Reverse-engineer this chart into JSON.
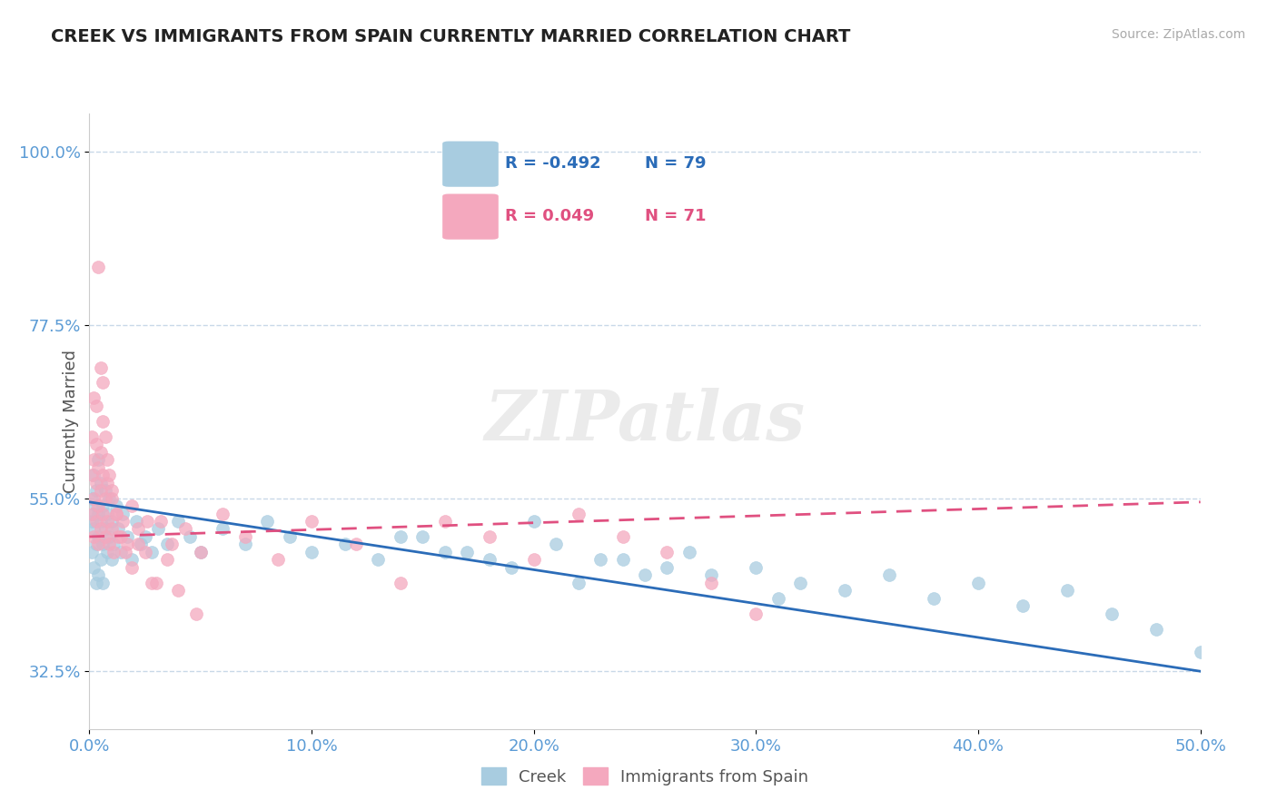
{
  "title": "CREEK VS IMMIGRANTS FROM SPAIN CURRENTLY MARRIED CORRELATION CHART",
  "source": "Source: ZipAtlas.com",
  "ylabel": "Currently Married",
  "xmin": 0.0,
  "xmax": 0.5,
  "ymin": 0.25,
  "ymax": 1.05,
  "yticks": [
    0.325,
    0.55,
    0.775,
    1.0
  ],
  "ytick_labels": [
    "32.5%",
    "55.0%",
    "77.5%",
    "100.0%"
  ],
  "xticks": [
    0.0,
    0.1,
    0.2,
    0.3,
    0.4,
    0.5
  ],
  "xtick_labels": [
    "0.0%",
    "10.0%",
    "20.0%",
    "30.0%",
    "40.0%",
    "50.0%"
  ],
  "creek_color": "#a8cce0",
  "spain_color": "#f4a8be",
  "creek_line_color": "#2b6cb8",
  "spain_line_color": "#e05080",
  "legend_creek_R": "-0.492",
  "legend_creek_N": "79",
  "legend_spain_R": "0.049",
  "legend_spain_N": "71",
  "creek_legend_label": "Creek",
  "spain_legend_label": "Immigrants from Spain",
  "watermark": "ZIPatlas",
  "title_color": "#222222",
  "axis_label_color": "#555555",
  "tick_label_color": "#5b9bd5",
  "grid_color": "#c8d8e8",
  "background_color": "#ffffff",
  "creek_x": [
    0.001,
    0.001,
    0.001,
    0.002,
    0.002,
    0.002,
    0.002,
    0.003,
    0.003,
    0.003,
    0.003,
    0.004,
    0.004,
    0.004,
    0.004,
    0.005,
    0.005,
    0.005,
    0.006,
    0.006,
    0.006,
    0.007,
    0.007,
    0.008,
    0.008,
    0.009,
    0.009,
    0.01,
    0.01,
    0.011,
    0.012,
    0.013,
    0.014,
    0.015,
    0.017,
    0.019,
    0.021,
    0.023,
    0.025,
    0.028,
    0.031,
    0.035,
    0.04,
    0.045,
    0.05,
    0.06,
    0.07,
    0.08,
    0.09,
    0.1,
    0.115,
    0.13,
    0.15,
    0.17,
    0.19,
    0.21,
    0.23,
    0.25,
    0.27,
    0.3,
    0.32,
    0.34,
    0.36,
    0.38,
    0.4,
    0.42,
    0.44,
    0.46,
    0.48,
    0.5,
    0.14,
    0.16,
    0.18,
    0.2,
    0.22,
    0.24,
    0.26,
    0.28,
    0.31
  ],
  "creek_y": [
    0.52,
    0.48,
    0.55,
    0.51,
    0.46,
    0.53,
    0.58,
    0.49,
    0.54,
    0.44,
    0.56,
    0.5,
    0.45,
    0.53,
    0.6,
    0.47,
    0.52,
    0.57,
    0.49,
    0.54,
    0.44,
    0.51,
    0.56,
    0.48,
    0.53,
    0.5,
    0.55,
    0.47,
    0.52,
    0.49,
    0.54,
    0.51,
    0.48,
    0.53,
    0.5,
    0.47,
    0.52,
    0.49,
    0.5,
    0.48,
    0.51,
    0.49,
    0.52,
    0.5,
    0.48,
    0.51,
    0.49,
    0.52,
    0.5,
    0.48,
    0.49,
    0.47,
    0.5,
    0.48,
    0.46,
    0.49,
    0.47,
    0.45,
    0.48,
    0.46,
    0.44,
    0.43,
    0.45,
    0.42,
    0.44,
    0.41,
    0.43,
    0.4,
    0.38,
    0.35,
    0.5,
    0.48,
    0.47,
    0.52,
    0.44,
    0.47,
    0.46,
    0.45,
    0.42
  ],
  "spain_x": [
    0.001,
    0.001,
    0.001,
    0.002,
    0.002,
    0.002,
    0.002,
    0.003,
    0.003,
    0.003,
    0.003,
    0.004,
    0.004,
    0.004,
    0.005,
    0.005,
    0.005,
    0.006,
    0.006,
    0.007,
    0.007,
    0.008,
    0.008,
    0.009,
    0.01,
    0.01,
    0.011,
    0.012,
    0.013,
    0.015,
    0.017,
    0.019,
    0.022,
    0.025,
    0.028,
    0.032,
    0.037,
    0.043,
    0.05,
    0.06,
    0.07,
    0.085,
    0.1,
    0.12,
    0.14,
    0.16,
    0.18,
    0.2,
    0.22,
    0.24,
    0.26,
    0.28,
    0.3,
    0.004,
    0.005,
    0.006,
    0.006,
    0.007,
    0.008,
    0.009,
    0.01,
    0.012,
    0.014,
    0.016,
    0.019,
    0.022,
    0.026,
    0.03,
    0.035,
    0.04,
    0.048
  ],
  "spain_y": [
    0.53,
    0.58,
    0.63,
    0.5,
    0.55,
    0.6,
    0.68,
    0.52,
    0.57,
    0.62,
    0.67,
    0.49,
    0.54,
    0.59,
    0.51,
    0.56,
    0.61,
    0.53,
    0.58,
    0.5,
    0.55,
    0.52,
    0.57,
    0.49,
    0.51,
    0.56,
    0.48,
    0.53,
    0.5,
    0.52,
    0.49,
    0.54,
    0.51,
    0.48,
    0.44,
    0.52,
    0.49,
    0.51,
    0.48,
    0.53,
    0.5,
    0.47,
    0.52,
    0.49,
    0.44,
    0.52,
    0.5,
    0.47,
    0.53,
    0.5,
    0.48,
    0.44,
    0.4,
    0.85,
    0.72,
    0.7,
    0.65,
    0.63,
    0.6,
    0.58,
    0.55,
    0.53,
    0.5,
    0.48,
    0.46,
    0.49,
    0.52,
    0.44,
    0.47,
    0.43,
    0.4
  ]
}
